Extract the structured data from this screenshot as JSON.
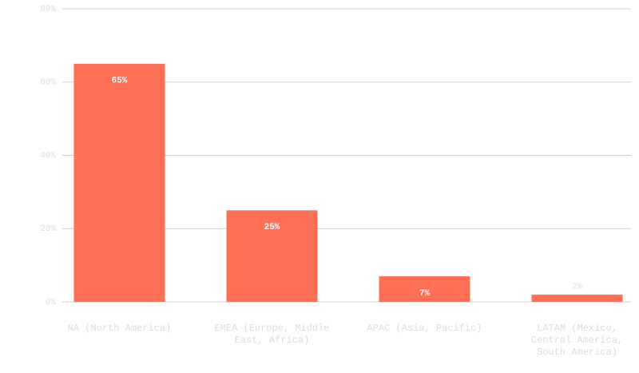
{
  "chart_data": {
    "type": "bar",
    "categories": [
      "NA (North America)",
      "EMEA (Europe, Middle East, Africa)",
      "APAC (Asia, Pacific)",
      "LATAM (Mexico, Central America, South America)"
    ],
    "values": [
      65,
      25,
      7,
      2
    ],
    "value_labels": [
      "65%",
      "25%",
      "7%",
      "2%"
    ],
    "color": "#ff6f55",
    "ylim": [
      0,
      80
    ],
    "yticks": [
      {
        "value": 0,
        "label": "0%"
      },
      {
        "value": 20,
        "label": "20%"
      },
      {
        "value": 40,
        "label": "40%"
      },
      {
        "value": 60,
        "label": "60%"
      },
      {
        "value": 80,
        "label": "80%"
      }
    ],
    "grid": true
  }
}
